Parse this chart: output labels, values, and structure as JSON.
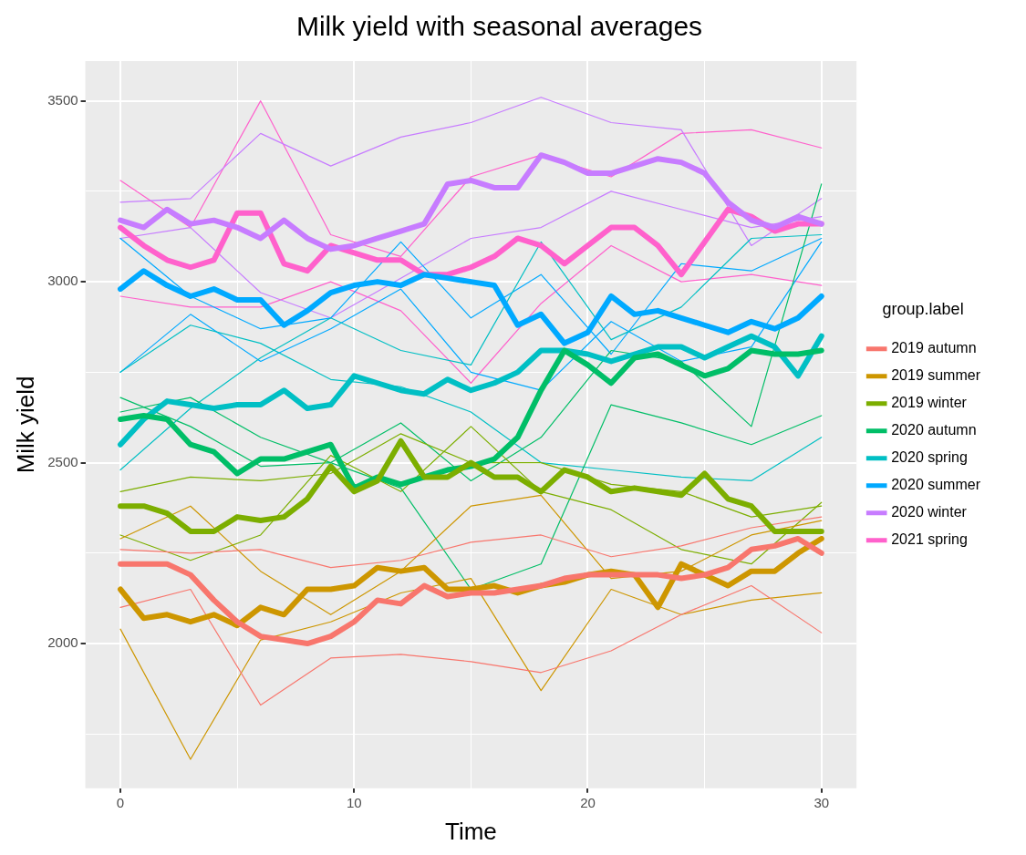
{
  "chart_data": {
    "type": "line",
    "title": "Milk yield with seasonal averages",
    "xlabel": "Time",
    "ylabel": "Milk yield",
    "legend_title": "group.label",
    "legend": "right",
    "grid": true,
    "marker": "none",
    "line_style": "solid",
    "xlim": [
      -1.5,
      31.5
    ],
    "xticks": [
      0,
      {
        "value": 5,
        "label": null
      },
      10,
      {
        "value": 15,
        "label": null
      },
      20,
      {
        "value": 25,
        "label": null
      },
      30
    ],
    "ylim": [
      1600,
      3610
    ],
    "yticks": [
      {
        "value": 1750,
        "label": null
      },
      2000,
      {
        "value": 2250,
        "label": null
      },
      2500,
      {
        "value": 2750,
        "label": null
      },
      3000,
      {
        "value": 3250,
        "label": null
      },
      3500
    ],
    "x": [
      0,
      1,
      2,
      3,
      4,
      5,
      6,
      7,
      8,
      9,
      10,
      11,
      12,
      13,
      14,
      15,
      16,
      17,
      18,
      19,
      20,
      21,
      22,
      23,
      24,
      25,
      26,
      27,
      28,
      29,
      30
    ],
    "series": [
      {
        "color": "#f8766d",
        "x": [
          0,
          3,
          6,
          9,
          12,
          15,
          18,
          21,
          24,
          27,
          30
        ],
        "values": [
          2260,
          2250,
          2260,
          2210,
          2230,
          2280,
          2300,
          2240,
          2270,
          2320,
          2350
        ]
      },
      {
        "color": "#f8766d",
        "x": [
          0,
          3,
          6,
          9,
          12,
          15,
          18,
          21,
          24,
          27,
          30
        ],
        "values": [
          2100,
          2150,
          1830,
          1960,
          1970,
          1950,
          1920,
          1980,
          2080,
          2160,
          2030
        ]
      },
      {
        "color": "#cd9600",
        "x": [
          0,
          3,
          6,
          9,
          12,
          15,
          18,
          21,
          24,
          27,
          30
        ],
        "values": [
          2040,
          1680,
          2010,
          2060,
          2140,
          2180,
          1870,
          2150,
          2080,
          2120,
          2140
        ]
      },
      {
        "color": "#cd9600",
        "x": [
          0,
          3,
          6,
          9,
          12,
          15,
          18,
          21,
          24,
          27,
          30
        ],
        "values": [
          2290,
          2380,
          2200,
          2080,
          2200,
          2380,
          2410,
          2180,
          2200,
          2300,
          2340
        ]
      },
      {
        "color": "#7cae00",
        "x": [
          0,
          3,
          6,
          9,
          12,
          15,
          18,
          21,
          24,
          27,
          30
        ],
        "values": [
          2420,
          2460,
          2450,
          2470,
          2580,
          2500,
          2500,
          2440,
          2420,
          2350,
          2380
        ]
      },
      {
        "color": "#7cae00",
        "x": [
          0,
          3,
          6,
          9,
          12,
          15,
          18,
          21,
          24,
          27,
          30
        ],
        "values": [
          2300,
          2230,
          2300,
          2520,
          2420,
          2600,
          2420,
          2370,
          2260,
          2220,
          2390
        ]
      },
      {
        "color": "#00be67",
        "x": [
          0,
          3,
          6,
          9,
          12,
          15,
          18,
          21,
          24,
          27,
          30
        ],
        "values": [
          2640,
          2680,
          2570,
          2500,
          2610,
          2450,
          2570,
          2810,
          2780,
          2600,
          3270
        ]
      },
      {
        "color": "#00be67",
        "x": [
          0,
          3,
          6,
          9,
          12,
          15,
          18,
          21,
          24,
          27,
          30
        ],
        "values": [
          2680,
          2600,
          2490,
          2500,
          2430,
          2150,
          2220,
          2660,
          2610,
          2550,
          2630
        ]
      },
      {
        "color": "#00bfc4",
        "x": [
          0,
          3,
          6,
          9,
          12,
          15,
          18,
          21,
          24,
          27,
          30
        ],
        "values": [
          2750,
          2880,
          2830,
          2730,
          2710,
          2640,
          2500,
          2480,
          2460,
          2450,
          2570
        ]
      },
      {
        "color": "#00bfc4",
        "x": [
          0,
          3,
          6,
          9,
          12,
          15,
          18,
          21,
          24,
          27,
          30
        ],
        "values": [
          2480,
          2650,
          2790,
          2900,
          2810,
          2770,
          3110,
          2840,
          2930,
          3120,
          3130
        ]
      },
      {
        "color": "#00a9ff",
        "x": [
          0,
          3,
          6,
          9,
          12,
          15,
          18,
          21,
          24,
          27,
          30
        ],
        "values": [
          2750,
          2910,
          2780,
          2870,
          2980,
          2750,
          2700,
          2890,
          2780,
          2820,
          3110
        ]
      },
      {
        "color": "#00a9ff",
        "x": [
          0,
          3,
          6,
          9,
          12,
          15,
          18,
          21,
          24,
          27,
          30
        ],
        "values": [
          3120,
          2960,
          2870,
          2900,
          3110,
          2900,
          3020,
          2800,
          3050,
          3030,
          3120
        ]
      },
      {
        "color": "#c77cff",
        "x": [
          0,
          3,
          6,
          9,
          12,
          15,
          18,
          21,
          24,
          27,
          30
        ],
        "values": [
          3220,
          3230,
          3410,
          3320,
          3400,
          3440,
          3510,
          3440,
          3420,
          3100,
          3230
        ]
      },
      {
        "color": "#c77cff",
        "x": [
          0,
          3,
          6,
          9,
          12,
          15,
          18,
          21,
          24,
          27,
          30
        ],
        "values": [
          3120,
          3150,
          2970,
          2900,
          3010,
          3120,
          3150,
          3250,
          3200,
          3150,
          3180
        ]
      },
      {
        "color": "#ff61cc",
        "x": [
          0,
          3,
          6,
          9,
          12,
          15,
          18,
          21,
          24,
          27,
          30
        ],
        "values": [
          3280,
          3150,
          3500,
          3130,
          3070,
          3290,
          3350,
          3290,
          3410,
          3420,
          3370
        ]
      },
      {
        "color": "#ff61cc",
        "x": [
          0,
          3,
          6,
          9,
          12,
          15,
          18,
          21,
          24,
          27,
          30
        ],
        "values": [
          2960,
          2930,
          2930,
          3000,
          2920,
          2720,
          2940,
          3100,
          3000,
          3020,
          2990
        ]
      },
      {
        "name": "2019 autumn",
        "color": "#f8766d",
        "values": [
          2220,
          2220,
          2220,
          2190,
          2120,
          2060,
          2020,
          2010,
          2000,
          2020,
          2060,
          2120,
          2110,
          2160,
          2130,
          2140,
          2140,
          2150,
          2160,
          2180,
          2190,
          2190,
          2190,
          2190,
          2180,
          2190,
          2210,
          2260,
          2270,
          2290,
          2250
        ]
      },
      {
        "name": "2019 summer",
        "color": "#cd9600",
        "values": [
          2150,
          2070,
          2080,
          2060,
          2080,
          2050,
          2100,
          2080,
          2150,
          2150,
          2160,
          2210,
          2200,
          2210,
          2150,
          2150,
          2160,
          2140,
          2160,
          2170,
          2190,
          2200,
          2190,
          2100,
          2220,
          2190,
          2160,
          2200,
          2200,
          2250,
          2290
        ]
      },
      {
        "name": "2019 winter",
        "color": "#7cae00",
        "values": [
          2380,
          2380,
          2360,
          2310,
          2310,
          2350,
          2340,
          2350,
          2400,
          2490,
          2420,
          2450,
          2560,
          2460,
          2460,
          2500,
          2460,
          2460,
          2420,
          2480,
          2460,
          2420,
          2430,
          2420,
          2410,
          2470,
          2400,
          2380,
          2310,
          2310,
          2310
        ]
      },
      {
        "name": "2020 autumn",
        "color": "#00be67",
        "values": [
          2620,
          2630,
          2620,
          2550,
          2530,
          2470,
          2510,
          2510,
          2530,
          2550,
          2430,
          2460,
          2440,
          2460,
          2480,
          2490,
          2510,
          2570,
          2700,
          2810,
          2770,
          2720,
          2790,
          2800,
          2770,
          2740,
          2760,
          2810,
          2800,
          2800,
          2810
        ]
      },
      {
        "name": "2020 spring",
        "color": "#00bfc4",
        "values": [
          2550,
          2620,
          2670,
          2660,
          2650,
          2660,
          2660,
          2700,
          2650,
          2660,
          2740,
          2720,
          2700,
          2690,
          2730,
          2700,
          2720,
          2750,
          2810,
          2810,
          2800,
          2780,
          2800,
          2820,
          2820,
          2790,
          2820,
          2850,
          2820,
          2740,
          2850
        ]
      },
      {
        "name": "2020 summer",
        "color": "#00a9ff",
        "values": [
          2980,
          3030,
          2990,
          2960,
          2980,
          2950,
          2950,
          2880,
          2920,
          2970,
          2990,
          3000,
          2990,
          3020,
          3010,
          3000,
          2990,
          2880,
          2910,
          2830,
          2860,
          2960,
          2910,
          2920,
          2900,
          2880,
          2860,
          2890,
          2870,
          2900,
          2960
        ]
      },
      {
        "name": "2020 winter",
        "color": "#c77cff",
        "values": [
          3170,
          3150,
          3200,
          3160,
          3170,
          3150,
          3120,
          3170,
          3120,
          3090,
          3100,
          3120,
          3140,
          3160,
          3270,
          3280,
          3260,
          3260,
          3350,
          3330,
          3300,
          3300,
          3320,
          3340,
          3330,
          3300,
          3220,
          3170,
          3150,
          3180,
          3160
        ]
      },
      {
        "name": "2021 spring",
        "color": "#ff61cc",
        "values": [
          3150,
          3100,
          3060,
          3040,
          3060,
          3190,
          3190,
          3050,
          3030,
          3100,
          3080,
          3060,
          3060,
          3020,
          3020,
          3040,
          3070,
          3120,
          3100,
          3050,
          3100,
          3150,
          3150,
          3100,
          3020,
          3110,
          3200,
          3180,
          3140,
          3160,
          3160
        ]
      }
    ]
  }
}
